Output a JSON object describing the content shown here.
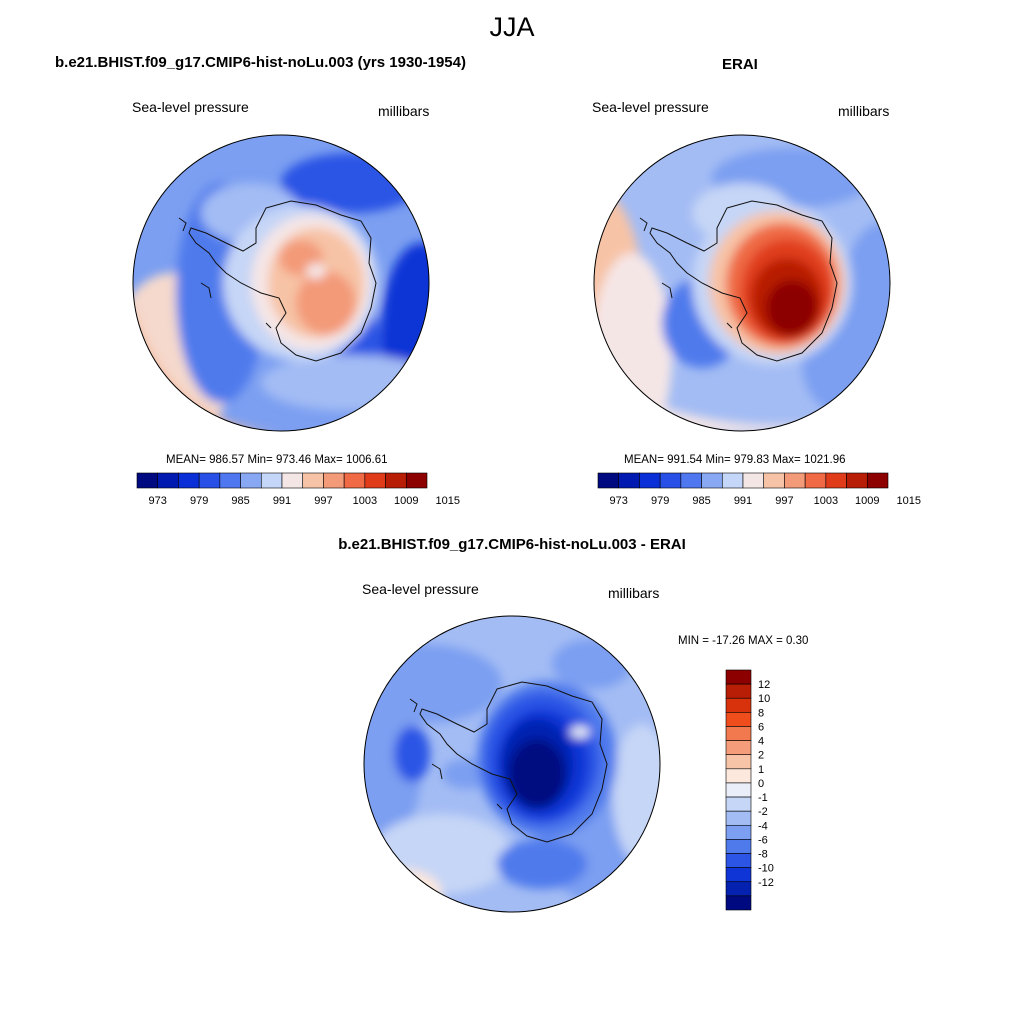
{
  "season": "JJA",
  "panels": {
    "model": {
      "title": "b.e21.BHIST.f09_g17.CMIP6-hist-noLu.003 (yrs 1930-1954)",
      "variable": "Sea-level pressure",
      "units": "millibars",
      "stats": "MEAN= 986.57  Min= 973.46  Max= 1006.61"
    },
    "obs": {
      "title": "ERAI",
      "variable": "Sea-level pressure",
      "units": "millibars",
      "stats": "MEAN= 991.54  Min= 979.83  Max= 1021.96"
    },
    "diff": {
      "title": "b.e21.BHIST.f09_g17.CMIP6-hist-noLu.003 - ERAI",
      "variable": "Sea-level pressure",
      "units": "millibars",
      "stats": "MIN = -17.26 MAX =   0.30"
    }
  },
  "colorbars": {
    "abs_colors": [
      "#000a80",
      "#0019b0",
      "#0b2fd6",
      "#2850e6",
      "#4f78f0",
      "#89a8f4",
      "#c5d7f8",
      "#f5e6e6",
      "#f7c3a6",
      "#f39a78",
      "#ef6a45",
      "#e03c1a",
      "#b81d05",
      "#8c0000"
    ],
    "abs_labels": [
      "973",
      "979",
      "985",
      "991",
      "997",
      "1003",
      "1009",
      "1015"
    ],
    "diff_colors": [
      "#8c0000",
      "#b81d05",
      "#d8320c",
      "#f04d1d",
      "#f2784d",
      "#f59d7a",
      "#f7c4a8",
      "#fce8dc",
      "#e9eef8",
      "#c6d6f6",
      "#a3bcf4",
      "#7c9ff1",
      "#4f7aec",
      "#2c55e5",
      "#0f35d6",
      "#0421b0",
      "#000a80"
    ],
    "diff_labels": [
      "12",
      "10",
      "8",
      "6",
      "4",
      "2",
      "1",
      "0",
      "-1",
      "-2",
      "-4",
      "-6",
      "-8",
      "-10",
      "-12"
    ]
  }
}
